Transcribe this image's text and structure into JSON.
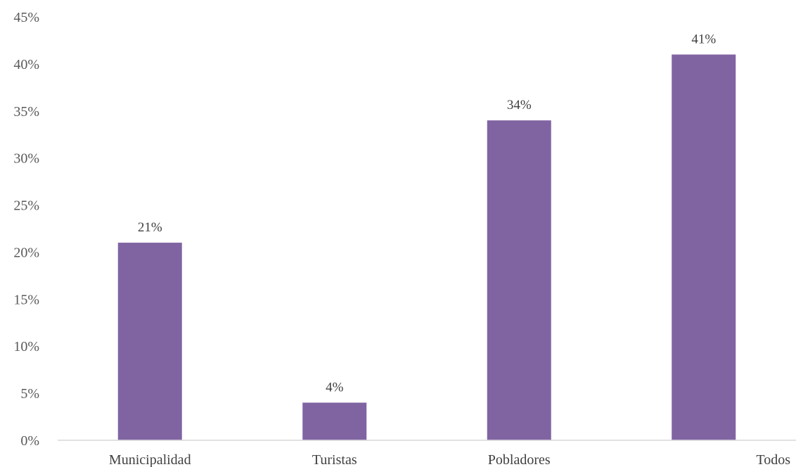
{
  "chart_data": {
    "type": "bar",
    "categories": [
      "Municipalidad",
      "Turistas",
      "Pobladores",
      "Todos"
    ],
    "series": [
      {
        "values": [
          21,
          4,
          34,
          41
        ],
        "color": "#8064a2"
      }
    ],
    "data_labels": [
      "21%",
      "4%",
      "34%",
      "41%"
    ],
    "y_ticks": [
      "0%",
      "5%",
      "10%",
      "15%",
      "20%",
      "25%",
      "30%",
      "35%",
      "40%",
      "45%"
    ],
    "ylim": [
      0,
      45
    ],
    "y_unit": "%",
    "title": "",
    "xlabel": "",
    "ylabel": "",
    "grid": false,
    "legend": "none"
  }
}
